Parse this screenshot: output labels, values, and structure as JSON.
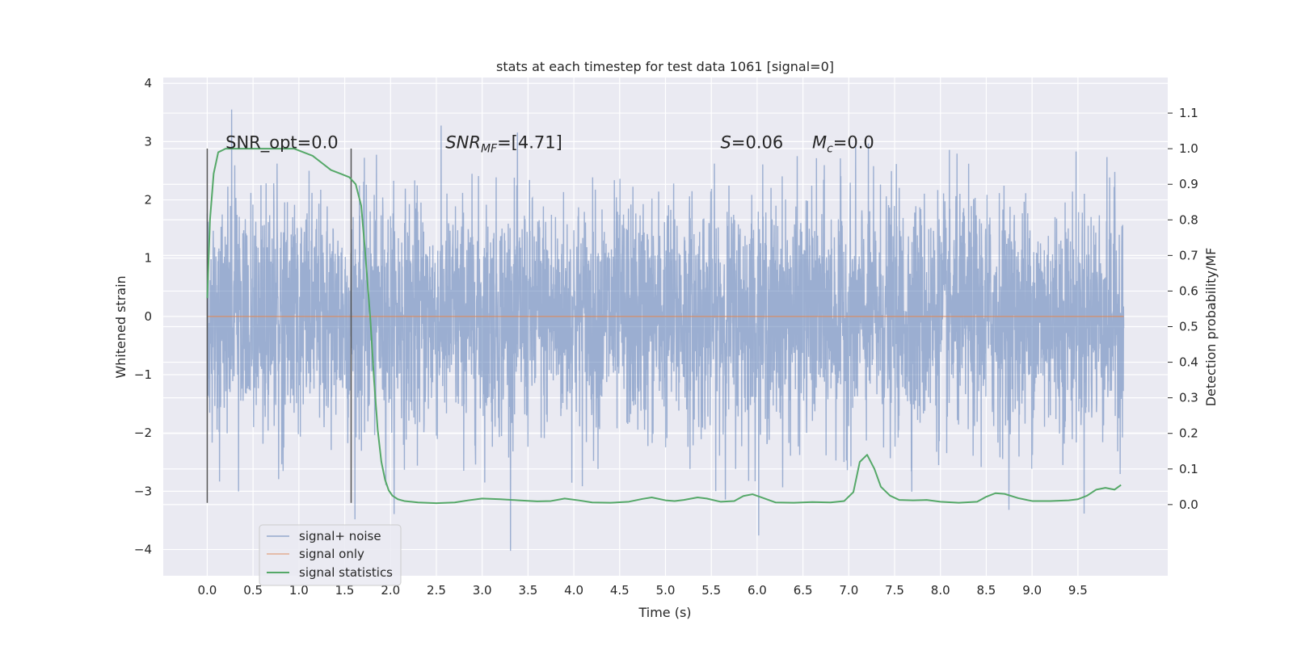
{
  "chart_data": {
    "type": "line",
    "title": "stats at each timestep for test data 1061 [signal=0]",
    "xlabel": "Time (s)",
    "ylabel": "Whitened strain",
    "ylabel_right": "Detection probability/MF",
    "xlim": [
      -0.48,
      10.48
    ],
    "ylim": [
      -4.45,
      4.1
    ],
    "ylim_right": [
      -0.2,
      1.2
    ],
    "x_ticks": [
      0.0,
      0.5,
      1.0,
      1.5,
      2.0,
      2.5,
      3.0,
      3.5,
      4.0,
      4.5,
      5.0,
      5.5,
      6.0,
      6.5,
      7.0,
      7.5,
      8.0,
      8.5,
      9.0,
      9.5
    ],
    "x_tick_labels": [
      "0.0",
      "0.5",
      "1.0",
      "1.5",
      "2.0",
      "2.5",
      "3.0",
      "3.5",
      "4.0",
      "4.5",
      "5.0",
      "5.5",
      "6.0",
      "6.5",
      "7.0",
      "7.5",
      "8.0",
      "8.5",
      "9.0",
      "9.5"
    ],
    "y_ticks": [
      -4,
      -3,
      -2,
      -1,
      0,
      1,
      2,
      3,
      4
    ],
    "y_tick_labels": [
      "−4",
      "−3",
      "−2",
      "−1",
      "0",
      "1",
      "2",
      "3",
      "4"
    ],
    "y_right_ticks": [
      0.0,
      0.1,
      0.2,
      0.3,
      0.4,
      0.5,
      0.6,
      0.7,
      0.8,
      0.9,
      1.0,
      1.1
    ],
    "y_right_tick_labels": [
      "0.0",
      "0.1",
      "0.2",
      "0.3",
      "0.4",
      "0.5",
      "0.6",
      "0.7",
      "0.8",
      "0.9",
      "1.0",
      "1.1"
    ],
    "grid": true,
    "legend_position": "lower-left",
    "colors": {
      "background": "#eaeaf2",
      "grid": "#ffffff",
      "noise": "#4c72b0",
      "signal": "#dd8452",
      "stats": "#55a868",
      "vline": "#555555"
    },
    "series": [
      {
        "name": "signal+ noise",
        "axis": "left",
        "style": "noise",
        "x_range": [
          0.0,
          10.0
        ],
        "amplitude_std": 1.0,
        "peak_max": 3.7,
        "peak_min": -4.05
      },
      {
        "name": "signal only",
        "axis": "left",
        "x": [
          0.0,
          10.0
        ],
        "y": [
          0.0,
          0.0
        ]
      },
      {
        "name": "signal statistics",
        "axis": "right",
        "x": [
          0.0,
          0.03,
          0.07,
          0.12,
          0.2,
          0.3,
          0.4,
          0.6,
          0.8,
          0.95,
          1.05,
          1.15,
          1.25,
          1.35,
          1.45,
          1.55,
          1.62,
          1.68,
          1.72,
          1.78,
          1.82,
          1.86,
          1.9,
          1.94,
          1.98,
          2.02,
          2.08,
          2.15,
          2.3,
          2.5,
          2.7,
          2.85,
          3.0,
          3.2,
          3.4,
          3.6,
          3.75,
          3.9,
          4.05,
          4.2,
          4.4,
          4.6,
          4.75,
          4.85,
          5.0,
          5.1,
          5.2,
          5.35,
          5.45,
          5.6,
          5.75,
          5.85,
          5.95,
          6.05,
          6.2,
          6.4,
          6.6,
          6.8,
          6.95,
          7.05,
          7.12,
          7.2,
          7.28,
          7.35,
          7.45,
          7.55,
          7.7,
          7.85,
          8.0,
          8.2,
          8.4,
          8.5,
          8.6,
          8.7,
          8.85,
          9.0,
          9.2,
          9.4,
          9.5,
          9.6,
          9.7,
          9.8,
          9.9,
          9.97
        ],
        "y": [
          0.58,
          0.8,
          0.93,
          0.99,
          1.0,
          1.0,
          1.0,
          1.0,
          1.0,
          1.0,
          0.99,
          0.98,
          0.96,
          0.94,
          0.93,
          0.92,
          0.9,
          0.84,
          0.72,
          0.52,
          0.35,
          0.21,
          0.12,
          0.07,
          0.04,
          0.025,
          0.015,
          0.01,
          0.006,
          0.004,
          0.006,
          0.012,
          0.017,
          0.015,
          0.012,
          0.009,
          0.01,
          0.017,
          0.012,
          0.006,
          0.005,
          0.008,
          0.016,
          0.02,
          0.012,
          0.01,
          0.013,
          0.02,
          0.017,
          0.008,
          0.01,
          0.024,
          0.029,
          0.02,
          0.006,
          0.005,
          0.007,
          0.006,
          0.01,
          0.035,
          0.12,
          0.14,
          0.1,
          0.05,
          0.025,
          0.013,
          0.012,
          0.013,
          0.008,
          0.005,
          0.008,
          0.022,
          0.032,
          0.03,
          0.018,
          0.01,
          0.01,
          0.012,
          0.015,
          0.025,
          0.042,
          0.047,
          0.042,
          0.055
        ]
      }
    ],
    "vlines": [
      {
        "x": 0.0,
        "y_from": -3.2,
        "y_to": 2.88
      },
      {
        "x": 1.57,
        "y_from": -3.2,
        "y_to": 2.88
      }
    ],
    "annotations": [
      {
        "text": "SNR_opt=0.0",
        "x": 0.2,
        "y": 3.0
      },
      {
        "text": "SNR_MF=[4.71]",
        "x": 2.6,
        "y": 3.0
      },
      {
        "text": "S=0.06",
        "x": 5.6,
        "y": 3.0
      },
      {
        "text": "M_c=0.0",
        "x": 6.6,
        "y": 3.0
      }
    ]
  }
}
